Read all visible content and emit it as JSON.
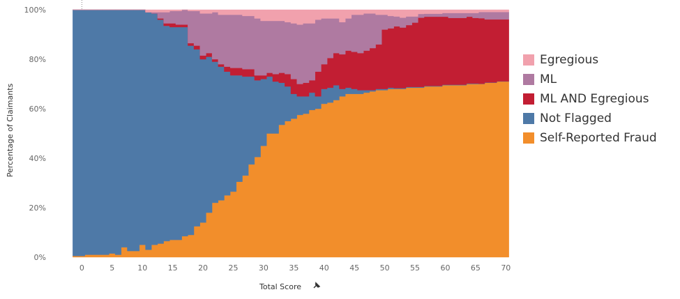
{
  "chart_data": {
    "type": "area",
    "stacked": true,
    "normalized": true,
    "xlabel": "Total Score",
    "ylabel": "Percentage of Claimants",
    "xlim": [
      -2,
      71
    ],
    "ylim": [
      0,
      100
    ],
    "x_ticks": [
      0,
      5,
      10,
      15,
      20,
      25,
      30,
      35,
      40,
      45,
      50,
      55,
      60,
      65,
      70
    ],
    "y_ticks": [
      0,
      20,
      40,
      60,
      80,
      100
    ],
    "y_tick_labels": [
      "0%",
      "20%",
      "40%",
      "60%",
      "80%",
      "100%"
    ],
    "x": [
      -1,
      0,
      1,
      2,
      3,
      4,
      5,
      6,
      7,
      8,
      9,
      10,
      11,
      12,
      13,
      14,
      15,
      16,
      17,
      18,
      19,
      20,
      21,
      22,
      23,
      24,
      25,
      26,
      27,
      28,
      29,
      30,
      31,
      32,
      33,
      34,
      35,
      36,
      37,
      38,
      39,
      40,
      41,
      42,
      43,
      44,
      45,
      46,
      47,
      48,
      49,
      50,
      51,
      52,
      53,
      54,
      55,
      56,
      57,
      58,
      59,
      60,
      61,
      62,
      63,
      64,
      65,
      66,
      67,
      68,
      69,
      70
    ],
    "series": [
      {
        "name": "Self-Reported Fraud",
        "color": "#f28e2b",
        "values": [
          0.5,
          0.5,
          1,
          1,
          1,
          1,
          1.5,
          1,
          4,
          2.5,
          2.5,
          5,
          3,
          5,
          5.5,
          6.5,
          7,
          7,
          8.5,
          9,
          12.5,
          14,
          18,
          22,
          23,
          25,
          26.5,
          30.5,
          33,
          37.5,
          40.5,
          45,
          50,
          50,
          53.5,
          55,
          56,
          57.5,
          58,
          59.5,
          60,
          62,
          62.5,
          63.5,
          65,
          66,
          66,
          66,
          66.5,
          67,
          67.5,
          67.5,
          68,
          68,
          68,
          68.5,
          68.5,
          68.5,
          69,
          69,
          69,
          69.5,
          69.5,
          69.5,
          69.5,
          70,
          70,
          70,
          70.5,
          70.5,
          71,
          71
        ]
      },
      {
        "name": "Not Flagged",
        "color": "#4e79a7",
        "values": [
          99.5,
          99.5,
          99,
          99,
          99,
          99,
          98.5,
          99,
          96,
          97.5,
          97.5,
          95,
          96,
          93.5,
          90.5,
          87,
          86,
          86,
          84.5,
          76.5,
          71.5,
          66,
          63,
          57,
          54,
          50,
          47,
          43,
          40,
          35.5,
          31,
          27,
          23,
          21,
          17,
          14,
          10,
          7.5,
          7,
          7,
          5,
          6,
          6,
          6,
          3,
          2.5,
          2,
          1.5,
          1,
          0.5,
          0.5,
          0.5,
          0.5,
          0.3,
          0.3,
          0.3,
          0.3,
          0.3,
          0.2,
          0.2,
          0.2,
          0.2,
          0.2,
          0.2,
          0.2,
          0.2,
          0.2,
          0.1,
          0.1,
          0.1,
          0.1,
          0.1
        ]
      },
      {
        "name": "ML AND Egregious",
        "color": "#c21e33",
        "values": [
          0,
          0,
          0,
          0,
          0,
          0,
          0,
          0,
          0,
          0,
          0,
          0,
          0,
          0,
          0.5,
          1,
          1.5,
          1,
          1,
          1,
          1.5,
          1.5,
          1.5,
          1,
          1,
          2,
          3,
          3,
          3,
          3,
          2,
          1.5,
          1.5,
          3,
          4,
          5,
          6,
          5,
          5.5,
          5,
          10,
          10,
          12,
          13,
          14,
          15,
          15,
          15,
          16,
          17,
          18,
          24,
          24,
          25,
          24.5,
          25,
          26,
          28,
          28,
          28,
          28,
          27.5,
          27,
          27,
          27,
          27,
          26.5,
          26.5,
          25.5,
          25.5,
          25,
          25
        ]
      },
      {
        "name": "ML",
        "color": "#af7aa1",
        "values": [
          0,
          0,
          0,
          0,
          0,
          0,
          0,
          0,
          0,
          0,
          0,
          0,
          0,
          0.5,
          2.5,
          4.5,
          5,
          5.5,
          6,
          13,
          14,
          17,
          16,
          19,
          20,
          21,
          21.5,
          21.5,
          21.5,
          21.5,
          23,
          22,
          21,
          21.5,
          21,
          21,
          22.5,
          24,
          24,
          23,
          21,
          18.5,
          16,
          14,
          13,
          13,
          15,
          15.5,
          15,
          14,
          12,
          6,
          5,
          4,
          4,
          3.5,
          2.5,
          1.5,
          1.2,
          1.2,
          1.2,
          1.5,
          2,
          2,
          2,
          1.5,
          2,
          2.5,
          3,
          3,
          3,
          3
        ]
      },
      {
        "name": "Egregious",
        "color": "#f1a1ad",
        "values": [
          0,
          0,
          0,
          0,
          0,
          0,
          0,
          0,
          0,
          0,
          0,
          0,
          1,
          1,
          1,
          1,
          0.5,
          0.5,
          0.5,
          0.5,
          0.5,
          1.5,
          1.5,
          1,
          2,
          2,
          2,
          2,
          2.5,
          2.5,
          3.5,
          4.5,
          4.5,
          4.5,
          4.5,
          5,
          5.5,
          6,
          5.5,
          5.5,
          4,
          3.5,
          3.5,
          3.5,
          5,
          3.5,
          2,
          2,
          1.5,
          1.5,
          1.5,
          1.5,
          1.5,
          1.7,
          3.2,
          2.7,
          2.7,
          1.7,
          1.6,
          1.6,
          1.6,
          1.3,
          1.3,
          1.3,
          1.3,
          1.3,
          1.3,
          0.9,
          0.9,
          0.9,
          0.9,
          0.9
        ]
      }
    ],
    "legend": {
      "position": "right",
      "entries": [
        {
          "label": "Egregious",
          "color": "#f1a1ad"
        },
        {
          "label": "ML",
          "color": "#af7aa1"
        },
        {
          "label": "ML AND Egregious",
          "color": "#c21e33"
        },
        {
          "label": "Not Flagged",
          "color": "#4e79a7"
        },
        {
          "label": "Self-Reported Fraud",
          "color": "#f28e2b"
        }
      ]
    },
    "grid": false
  },
  "x_axis_pin_icon": "pin-icon"
}
